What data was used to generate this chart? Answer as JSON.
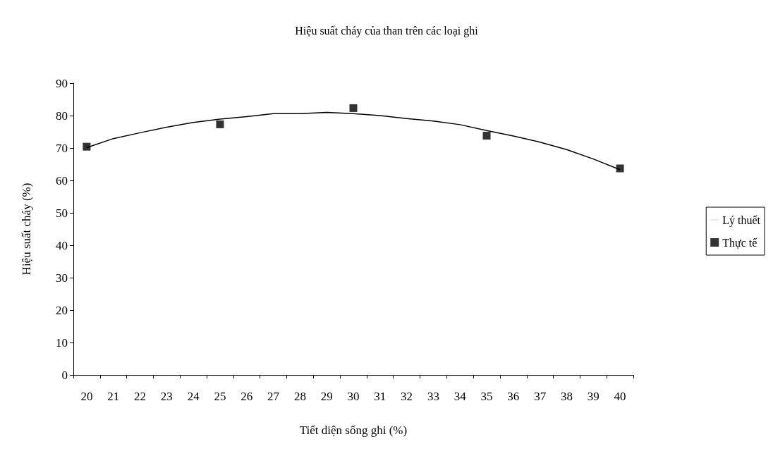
{
  "chart_data": {
    "type": "line",
    "title": "Hiệu suất cháy của than trên các loại ghi",
    "xlabel": "Tiết diện sống ghi (%)",
    "ylabel": "Hiệu suất cháy (%)",
    "categories": [
      "20",
      "21",
      "22",
      "23",
      "24",
      "25",
      "26",
      "27",
      "28",
      "29",
      "30",
      "31",
      "32",
      "33",
      "34",
      "35",
      "36",
      "37",
      "38",
      "39",
      "40"
    ],
    "series": [
      {
        "name": "Lý thuết",
        "color": "#000000",
        "marker": "none",
        "line_style": "solid",
        "values": [
          70.1,
          72.9,
          74.7,
          76.4,
          77.9,
          78.9,
          79.7,
          80.6,
          80.6,
          81.0,
          80.6,
          80.0,
          79.1,
          78.3,
          77.2,
          75.4,
          73.7,
          71.8,
          69.5,
          66.6,
          63.3
        ]
      },
      {
        "name": "Thực tế",
        "type": "scatter",
        "color": "#000000",
        "marker": "square",
        "x": [
          "20",
          "25",
          "30",
          "35",
          "40"
        ],
        "values": [
          70.4,
          77.3,
          82.3,
          73.8,
          63.7
        ]
      }
    ],
    "ylim": [
      0,
      90
    ],
    "yticks": [
      0,
      10,
      20,
      30,
      40,
      50,
      60,
      70,
      80,
      90
    ],
    "grid": false,
    "legend": "right"
  }
}
